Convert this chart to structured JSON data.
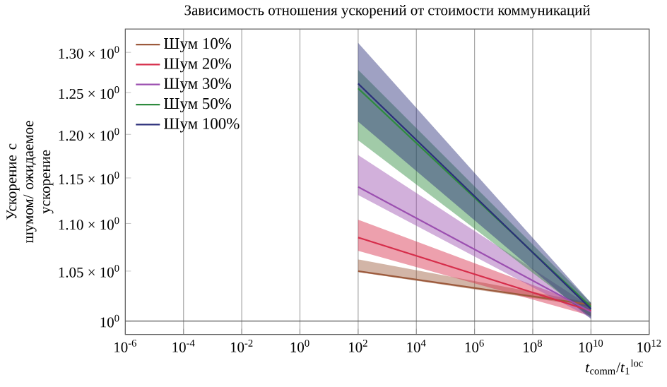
{
  "chart_data": {
    "type": "line",
    "title": "Зависимость отношения ускорений от стоимости коммуникаций",
    "xlabel": "*t*$_{comm}$/*t*$_{1}$$^{loc}$",
    "ylabel": "Ускорение с шумом/ ожидаемое ускорение",
    "log": "xy",
    "grid": "x",
    "legend": "top left",
    "xlim": [
      1e-06,
      1000000000000.0
    ],
    "ylim": [
      0.987,
      1.33
    ],
    "xticks": [
      {
        "value": 1e-06,
        "label": "10$^{-6}$"
      },
      {
        "value": 0.0001,
        "label": "10$^{-4}$"
      },
      {
        "value": 0.01,
        "label": "10$^{-2}$"
      },
      {
        "value": 1,
        "label": "10$^{0}$"
      },
      {
        "value": 100.0,
        "label": "10$^{2}$"
      },
      {
        "value": 10000.0,
        "label": "10$^{4}$"
      },
      {
        "value": 1000000.0,
        "label": "10$^{6}$"
      },
      {
        "value": 100000000.0,
        "label": "10$^{8}$"
      },
      {
        "value": 10000000000.0,
        "label": "10$^{10}$"
      },
      {
        "value": 1000000000000.0,
        "label": "10$^{12}$"
      }
    ],
    "yticks": [
      {
        "value": 1,
        "label": "10$^{0}$"
      },
      {
        "value": 1.05,
        "label": "1.05 × 10$^{0}$"
      },
      {
        "value": 1.1,
        "label": "1.10 × 10$^{0}$"
      },
      {
        "value": 1.15,
        "label": "1.15 × 10$^{0}$"
      },
      {
        "value": 1.2,
        "label": "1.20 × 10$^{0}$"
      },
      {
        "value": 1.25,
        "label": "1.25 × 10$^{0}$"
      },
      {
        "value": 1.3,
        "label": "1.30 × 10$^{0}$"
      }
    ],
    "ref_lines": [
      {
        "axis": "y",
        "value": 1,
        "color": "#555555"
      }
    ],
    "x": [
      100.0,
      10000000000.0
    ],
    "series": [
      {
        "name": "Шум 10%",
        "color": "#9c5a3c",
        "values": [
          1.05,
          1.016
        ],
        "lower": [
          1.049,
          1.014
        ],
        "upper": [
          1.062,
          1.018
        ]
      },
      {
        "name": "Шум 20%",
        "color": "#d62d4a",
        "values": [
          1.085,
          1.01
        ],
        "lower": [
          1.071,
          1.005
        ],
        "upper": [
          1.104,
          1.014
        ]
      },
      {
        "name": "Шум 30%",
        "color": "#9b4fb0",
        "values": [
          1.14,
          1.009
        ],
        "lower": [
          1.131,
          1.003
        ],
        "upper": [
          1.176,
          1.014
        ]
      },
      {
        "name": "Шум 50%",
        "color": "#2e8b3e",
        "values": [
          1.255,
          1.014
        ],
        "lower": [
          1.193,
          1.004
        ],
        "upper": [
          1.278,
          1.018
        ]
      },
      {
        "name": "Шум 100%",
        "color": "#2b2f7a",
        "values": [
          1.261,
          1.012
        ],
        "lower": [
          1.215,
          1.002
        ],
        "upper": [
          1.312,
          1.018
        ]
      }
    ]
  }
}
